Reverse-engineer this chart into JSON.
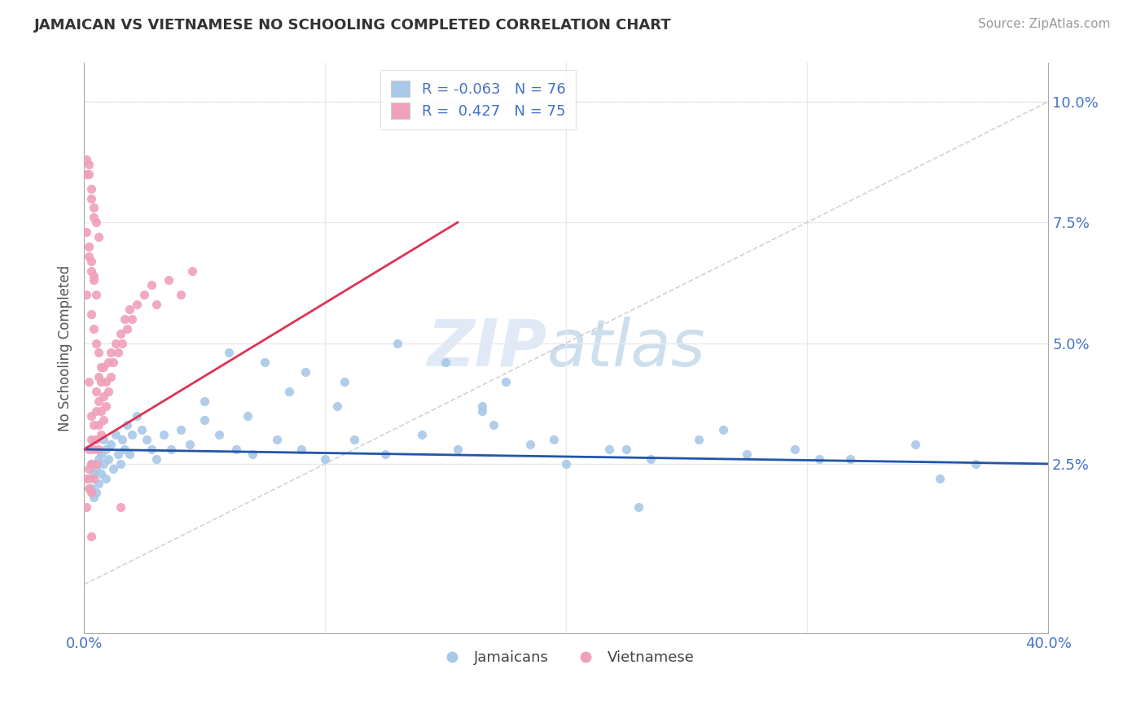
{
  "title": "JAMAICAN VS VIETNAMESE NO SCHOOLING COMPLETED CORRELATION CHART",
  "source": "Source: ZipAtlas.com",
  "ylabel": "No Schooling Completed",
  "xlim": [
    0.0,
    0.4
  ],
  "ylim": [
    -0.01,
    0.108
  ],
  "xticks": [
    0.0,
    0.1,
    0.2,
    0.3,
    0.4
  ],
  "xticklabels": [
    "0.0%",
    "",
    "",
    "",
    "40.0%"
  ],
  "ytick_positions": [
    0.025,
    0.05,
    0.075,
    0.1
  ],
  "ytick_labels": [
    "2.5%",
    "5.0%",
    "7.5%",
    "10.0%"
  ],
  "jamaican_color": "#a8c8e8",
  "vietnamese_color": "#f0a0b8",
  "jamaican_trend_color": "#2255aa",
  "vietnamese_trend_color": "#dd3355",
  "ref_line_color": "#c8c8cc",
  "legend_label1": "Jamaicans",
  "legend_label2": "Vietnamese",
  "jamaican_R": -0.063,
  "vietnamese_R": 0.427,
  "jamaican_N": 76,
  "vietnamese_N": 75,
  "watermark_zip": "ZIP",
  "watermark_atlas": "atlas",
  "background_color": "#ffffff",
  "grid_color": "#e8e8ee",
  "tick_color": "#4472c4",
  "jamaican_x": [
    0.002,
    0.003,
    0.003,
    0.004,
    0.004,
    0.005,
    0.005,
    0.006,
    0.006,
    0.007,
    0.007,
    0.008,
    0.008,
    0.009,
    0.009,
    0.01,
    0.011,
    0.012,
    0.013,
    0.014,
    0.015,
    0.016,
    0.017,
    0.018,
    0.019,
    0.02,
    0.022,
    0.024,
    0.026,
    0.028,
    0.03,
    0.033,
    0.036,
    0.04,
    0.044,
    0.05,
    0.056,
    0.063,
    0.07,
    0.08,
    0.09,
    0.1,
    0.112,
    0.125,
    0.14,
    0.155,
    0.17,
    0.185,
    0.2,
    0.218,
    0.235,
    0.255,
    0.275,
    0.295,
    0.318,
    0.345,
    0.37,
    0.06,
    0.075,
    0.092,
    0.108,
    0.13,
    0.15,
    0.175,
    0.05,
    0.068,
    0.085,
    0.105,
    0.165,
    0.195,
    0.225,
    0.265,
    0.305,
    0.355,
    0.165,
    0.23
  ],
  "jamaican_y": [
    0.022,
    0.02,
    0.025,
    0.018,
    0.023,
    0.019,
    0.024,
    0.021,
    0.026,
    0.023,
    0.027,
    0.025,
    0.03,
    0.022,
    0.028,
    0.026,
    0.029,
    0.024,
    0.031,
    0.027,
    0.025,
    0.03,
    0.028,
    0.033,
    0.027,
    0.031,
    0.035,
    0.032,
    0.03,
    0.028,
    0.026,
    0.031,
    0.028,
    0.032,
    0.029,
    0.034,
    0.031,
    0.028,
    0.027,
    0.03,
    0.028,
    0.026,
    0.03,
    0.027,
    0.031,
    0.028,
    0.033,
    0.029,
    0.025,
    0.028,
    0.026,
    0.03,
    0.027,
    0.028,
    0.026,
    0.029,
    0.025,
    0.048,
    0.046,
    0.044,
    0.042,
    0.05,
    0.046,
    0.042,
    0.038,
    0.035,
    0.04,
    0.037,
    0.036,
    0.03,
    0.028,
    0.032,
    0.026,
    0.022,
    0.037,
    0.016
  ],
  "vietnamese_x": [
    0.001,
    0.001,
    0.002,
    0.002,
    0.002,
    0.003,
    0.003,
    0.003,
    0.003,
    0.004,
    0.004,
    0.004,
    0.005,
    0.005,
    0.005,
    0.005,
    0.006,
    0.006,
    0.006,
    0.006,
    0.007,
    0.007,
    0.007,
    0.008,
    0.008,
    0.008,
    0.009,
    0.009,
    0.01,
    0.01,
    0.011,
    0.011,
    0.012,
    0.013,
    0.014,
    0.015,
    0.016,
    0.017,
    0.018,
    0.019,
    0.02,
    0.022,
    0.025,
    0.028,
    0.03,
    0.035,
    0.04,
    0.045,
    0.001,
    0.002,
    0.003,
    0.004,
    0.005,
    0.006,
    0.002,
    0.003,
    0.004,
    0.005,
    0.003,
    0.004,
    0.005,
    0.006,
    0.007,
    0.002,
    0.001,
    0.002,
    0.003,
    0.004,
    0.001,
    0.002,
    0.003,
    0.004,
    0.001,
    0.003,
    0.015
  ],
  "vietnamese_y": [
    0.022,
    0.016,
    0.02,
    0.024,
    0.028,
    0.019,
    0.025,
    0.03,
    0.035,
    0.022,
    0.028,
    0.033,
    0.025,
    0.03,
    0.036,
    0.04,
    0.028,
    0.033,
    0.038,
    0.043,
    0.031,
    0.036,
    0.042,
    0.034,
    0.039,
    0.045,
    0.037,
    0.042,
    0.04,
    0.046,
    0.043,
    0.048,
    0.046,
    0.05,
    0.048,
    0.052,
    0.05,
    0.055,
    0.053,
    0.057,
    0.055,
    0.058,
    0.06,
    0.062,
    0.058,
    0.063,
    0.06,
    0.065,
    0.085,
    0.087,
    0.082,
    0.078,
    0.075,
    0.072,
    0.068,
    0.065,
    0.063,
    0.06,
    0.056,
    0.053,
    0.05,
    0.048,
    0.045,
    0.042,
    0.088,
    0.085,
    0.08,
    0.076,
    0.073,
    0.07,
    0.067,
    0.064,
    0.06,
    0.01,
    0.016
  ]
}
